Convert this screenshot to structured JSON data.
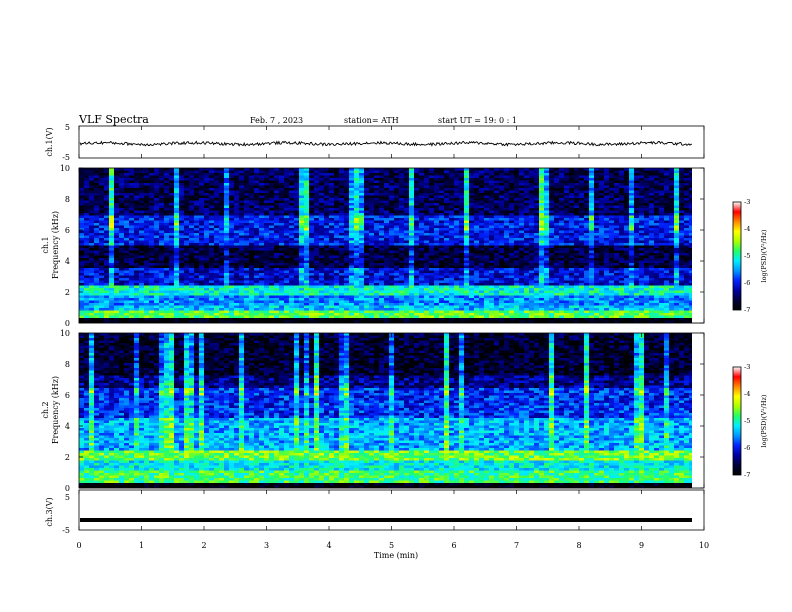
{
  "header": {
    "title": "VLF  Spectra",
    "date": "Feb. 7  , 2023",
    "station": "station= ATH",
    "start": "start  UT  =    19: 0   : 1"
  },
  "colors": {
    "cmap": [
      "#000000",
      "#00003a",
      "#0000a0",
      "#0022ff",
      "#0099ff",
      "#00eeff",
      "#22ff66",
      "#aaff00",
      "#ffff00",
      "#ff8800",
      "#ff0000",
      "#ffffff"
    ]
  },
  "chart_data": [
    {
      "type": "line",
      "id": "ch1-waveform",
      "ylabel": "ch.1(V)",
      "ylim": [
        -5,
        5
      ],
      "yticks": [
        "5",
        "-5"
      ],
      "xlim": [
        0,
        10
      ],
      "baseline": -0.5,
      "amplitude_range": [
        -1.5,
        0.5
      ]
    },
    {
      "type": "heatmap",
      "id": "ch1-spectrogram",
      "ylabel": "ch.1\nFrequency  (kHz)",
      "ylim": [
        0,
        10
      ],
      "yticks": [
        "0",
        "2",
        "4",
        "6",
        "8",
        "10"
      ],
      "xlim": [
        0,
        10
      ],
      "colorbar": {
        "label": "log(PSD)(V²/Hz)",
        "range": [
          -7,
          -3
        ],
        "ticks": [
          "-3",
          "-4",
          "-5",
          "-6",
          "-7"
        ]
      },
      "bands_khz": [
        {
          "f": [
            0.0,
            0.3
          ],
          "level": -7.0
        },
        {
          "f": [
            0.3,
            0.8
          ],
          "level": -4.5
        },
        {
          "f": [
            0.8,
            1.2
          ],
          "level": -5.2
        },
        {
          "f": [
            1.2,
            1.8
          ],
          "level": -5.4
        },
        {
          "f": [
            1.8,
            2.4
          ],
          "level": -4.9
        },
        {
          "f": [
            2.4,
            3.5
          ],
          "level": -6.0
        },
        {
          "f": [
            3.5,
            5.0
          ],
          "level": -6.6
        },
        {
          "f": [
            5.0,
            7.0
          ],
          "level": -5.9
        },
        {
          "f": [
            7.0,
            10.0
          ],
          "level": -6.5
        }
      ]
    },
    {
      "type": "heatmap",
      "id": "ch2-spectrogram",
      "ylabel": "ch.2\nFrequency  (kHz)",
      "ylim": [
        0,
        10
      ],
      "yticks": [
        "0",
        "2",
        "4",
        "6",
        "8",
        "10"
      ],
      "xlim": [
        0,
        10
      ],
      "colorbar": {
        "label": "log(PSD)(V²/Hz)",
        "range": [
          -7,
          -3
        ],
        "ticks": [
          "-3",
          "-4",
          "-5",
          "-6",
          "-7"
        ]
      },
      "bands_khz": [
        {
          "f": [
            0.0,
            0.3
          ],
          "level": -7.0
        },
        {
          "f": [
            0.3,
            1.2
          ],
          "level": -4.6
        },
        {
          "f": [
            1.2,
            1.8
          ],
          "level": -5.0
        },
        {
          "f": [
            1.8,
            2.4
          ],
          "level": -4.4
        },
        {
          "f": [
            2.4,
            4.5
          ],
          "level": -5.3
        },
        {
          "f": [
            4.5,
            6.5
          ],
          "level": -5.8
        },
        {
          "f": [
            6.5,
            7.2
          ],
          "level": -6.3
        },
        {
          "f": [
            7.2,
            10.0
          ],
          "level": -6.7
        }
      ]
    },
    {
      "type": "line",
      "id": "ch3-waveform",
      "ylabel": "ch.3(V)",
      "ylim": [
        -5,
        5
      ],
      "yticks": [
        "5",
        "-5"
      ],
      "xlim": [
        0,
        10
      ],
      "baseline": -2.5
    }
  ],
  "xaxis": {
    "label": "Time  (min)",
    "ticks": [
      "0",
      "1",
      "2",
      "3",
      "4",
      "5",
      "6",
      "7",
      "8",
      "9",
      "10"
    ]
  }
}
